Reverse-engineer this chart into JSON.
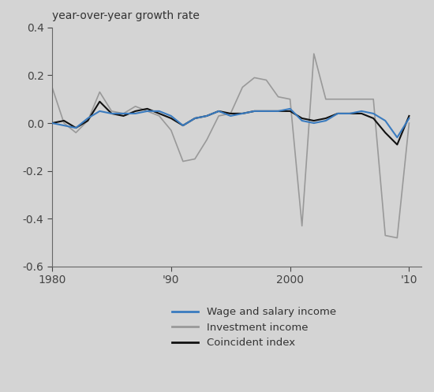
{
  "title": "year-over-year growth rate",
  "xlim": [
    1980,
    2011
  ],
  "ylim": [
    -0.6,
    0.4
  ],
  "yticks": [
    -0.6,
    -0.4,
    -0.2,
    0.0,
    0.2,
    0.4
  ],
  "xticks": [
    1980,
    1990,
    2000,
    2010
  ],
  "xticklabels": [
    "1980",
    "'90",
    "2000",
    "'10"
  ],
  "background_color": "#d4d4d4",
  "wage_color": "#3a7bbf",
  "investment_color": "#999999",
  "coincident_color": "#111111",
  "wage_x": [
    1980,
    1981,
    1982,
    1983,
    1984,
    1985,
    1986,
    1987,
    1988,
    1989,
    1990,
    1991,
    1992,
    1993,
    1994,
    1995,
    1996,
    1997,
    1998,
    1999,
    2000,
    2001,
    2002,
    2003,
    2004,
    2005,
    2006,
    2007,
    2008,
    2009,
    2010
  ],
  "wage_y": [
    0.0,
    -0.01,
    -0.02,
    0.02,
    0.05,
    0.04,
    0.04,
    0.04,
    0.05,
    0.05,
    0.03,
    -0.01,
    0.02,
    0.03,
    0.05,
    0.03,
    0.04,
    0.05,
    0.05,
    0.05,
    0.06,
    0.01,
    0.0,
    0.01,
    0.04,
    0.04,
    0.05,
    0.04,
    0.01,
    -0.06,
    0.02
  ],
  "investment_x": [
    1980,
    1981,
    1982,
    1983,
    1984,
    1985,
    1986,
    1987,
    1988,
    1989,
    1990,
    1991,
    1992,
    1993,
    1994,
    1995,
    1996,
    1997,
    1998,
    1999,
    2000,
    2001,
    2002,
    2003,
    2004,
    2005,
    2006,
    2007,
    2008,
    2009,
    2010
  ],
  "investment_y": [
    0.15,
    0.0,
    -0.04,
    0.01,
    0.13,
    0.05,
    0.04,
    0.07,
    0.05,
    0.03,
    -0.03,
    -0.16,
    -0.15,
    -0.07,
    0.03,
    0.04,
    0.15,
    0.19,
    0.18,
    0.11,
    0.1,
    -0.43,
    0.29,
    0.1,
    0.1,
    0.1,
    0.1,
    0.1,
    -0.47,
    -0.48,
    0.0
  ],
  "coincident_x": [
    1980,
    1981,
    1982,
    1983,
    1984,
    1985,
    1986,
    1987,
    1988,
    1989,
    1990,
    1991,
    1992,
    1993,
    1994,
    1995,
    1996,
    1997,
    1998,
    1999,
    2000,
    2001,
    2002,
    2003,
    2004,
    2005,
    2006,
    2007,
    2008,
    2009,
    2010
  ],
  "coincident_y": [
    0.0,
    0.01,
    -0.02,
    0.01,
    0.09,
    0.04,
    0.03,
    0.05,
    0.06,
    0.04,
    0.02,
    -0.01,
    0.02,
    0.03,
    0.05,
    0.04,
    0.04,
    0.05,
    0.05,
    0.05,
    0.05,
    0.02,
    0.01,
    0.02,
    0.04,
    0.04,
    0.04,
    0.02,
    -0.04,
    -0.09,
    0.03
  ],
  "legend_labels": [
    "Wage and salary income",
    "Investment income",
    "Coincident index"
  ],
  "legend_colors": [
    "#3a7bbf",
    "#999999",
    "#111111"
  ]
}
